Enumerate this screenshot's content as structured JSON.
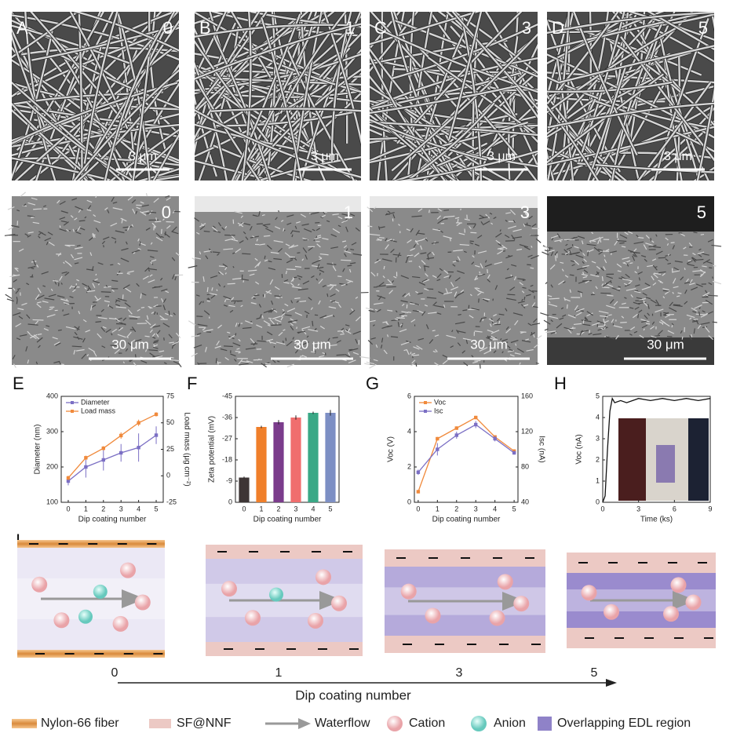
{
  "panels": {
    "sem_top": [
      {
        "letter": "A",
        "number": "0",
        "scale": "3 μm"
      },
      {
        "letter": "B",
        "number": "1",
        "scale": "3 μm"
      },
      {
        "letter": "C",
        "number": "3",
        "scale": "3 μm"
      },
      {
        "letter": "D",
        "number": "5",
        "scale": "3 μm"
      }
    ],
    "sem_cross": [
      {
        "number": "0",
        "scale": "30 μm"
      },
      {
        "number": "1",
        "scale": "30 μm"
      },
      {
        "number": "3",
        "scale": "30 μm"
      },
      {
        "number": "5",
        "scale": "30 μm"
      }
    ]
  },
  "chart_data": [
    {
      "type": "line",
      "panel": "E",
      "x": [
        0,
        1,
        2,
        3,
        4,
        5
      ],
      "xlim": [
        -0.4,
        5.4
      ],
      "xticks": [
        0,
        1,
        2,
        3,
        4,
        5
      ],
      "xlabel": "Dip coating number",
      "ylabel": "Diameter (nm)",
      "y2label": "Load mass (μg cm⁻²)",
      "ylim": [
        100,
        400
      ],
      "yticks": [
        100,
        200,
        300,
        400
      ],
      "y2lim": [
        -25,
        75
      ],
      "y2ticks": [
        -25,
        0,
        25,
        50,
        75
      ],
      "legend": "upper left",
      "series": [
        {
          "name": "Diameter",
          "color": "#7b6fc4",
          "values": [
            160,
            200,
            220,
            240,
            255,
            290
          ],
          "errors": [
            12,
            30,
            30,
            25,
            40,
            25
          ]
        },
        {
          "name": "Load mass",
          "color": "#f08a3c",
          "axis": "y2",
          "values": [
            -2,
            17,
            26,
            38,
            50,
            58
          ],
          "errors": [
            2,
            2,
            2,
            3,
            3,
            2
          ]
        }
      ]
    },
    {
      "type": "bar",
      "panel": "F",
      "categories": [
        "0",
        "1",
        "2",
        "3",
        "4",
        "5"
      ],
      "xlabel": "Dip coating number",
      "ylabel": "Zeta potential (mV)",
      "values": [
        -10.5,
        -32,
        -34,
        -36,
        -38,
        -38
      ],
      "errors": [
        0.4,
        0.5,
        0.9,
        0.9,
        0.5,
        1.2
      ],
      "colors": [
        "#3d3535",
        "#f07f2a",
        "#7b3c8c",
        "#f06e6e",
        "#3aa886",
        "#7d8fc4"
      ],
      "ylim": [
        0,
        -45
      ],
      "yticks": [
        0,
        -9,
        -18,
        -27,
        -36,
        -45
      ]
    },
    {
      "type": "line",
      "panel": "G",
      "x": [
        0,
        1,
        2,
        3,
        4,
        5
      ],
      "xlim": [
        -0.2,
        5.2
      ],
      "xticks": [
        0,
        1,
        2,
        3,
        4,
        5
      ],
      "xlabel": "Dip coating number",
      "ylabel": "Voc (V)",
      "y2label": "Isc (nA)",
      "ylim": [
        0,
        6
      ],
      "yticks": [
        0,
        2,
        4,
        6
      ],
      "y2lim": [
        40,
        160
      ],
      "y2ticks": [
        40,
        80,
        120,
        160
      ],
      "legend": "upper left",
      "series": [
        {
          "name": "Voc",
          "color": "#f08a3c",
          "values": [
            0.6,
            3.6,
            4.2,
            4.8,
            3.7,
            2.9
          ],
          "errors": [
            0.05,
            0.1,
            0.1,
            0.1,
            0.1,
            0.1
          ]
        },
        {
          "name": "Isc",
          "color": "#7b6fc4",
          "axis": "y2",
          "values": [
            74,
            100,
            116,
            128,
            112,
            96
          ],
          "errors": [
            3,
            7,
            4,
            4,
            3,
            2
          ]
        }
      ]
    },
    {
      "type": "line",
      "panel": "H",
      "x": [
        0,
        0.2,
        0.4,
        0.6,
        0.8,
        1,
        1.5,
        2,
        3,
        4,
        5,
        6,
        7,
        8,
        9
      ],
      "xlim": [
        0,
        9
      ],
      "xticks": [
        0,
        3,
        6,
        9
      ],
      "xlabel": "Time (ks)",
      "ylabel": "Voc (nA)",
      "ylim": [
        0,
        5
      ],
      "yticks": [
        0,
        1,
        2,
        3,
        4,
        5
      ],
      "color": "#111111",
      "values": [
        0,
        0.3,
        2.5,
        4.3,
        4.9,
        4.7,
        4.8,
        4.7,
        4.9,
        4.8,
        4.9,
        4.8,
        4.9,
        4.8,
        4.9
      ]
    }
  ],
  "schematic": {
    "letter": "I",
    "stages": [
      "0",
      "1",
      "3",
      "5"
    ],
    "axis_label": "Dip coating number"
  },
  "legend": [
    "Nylon-66 fiber",
    "SF@NNF",
    "Waterflow",
    "Cation",
    "Anion",
    "Overlapping EDL region"
  ]
}
